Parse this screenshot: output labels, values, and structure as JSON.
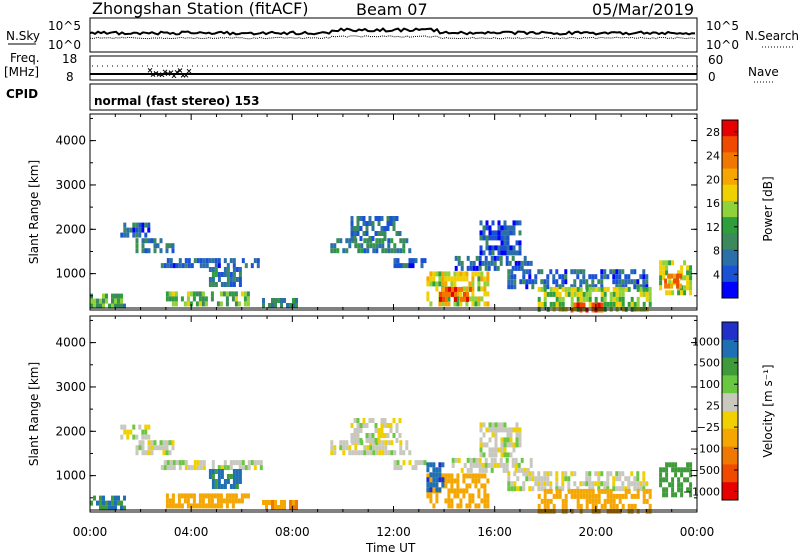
{
  "header": {
    "station": "Zhongshan Station (fitACF)",
    "beam": "Beam 07",
    "date": "05/Mar/2019"
  },
  "strip_panels": {
    "nsky_label": "N.Sky",
    "nsky_ticks": [
      "10^5",
      "10^0"
    ],
    "nsearch_label": "N.Search",
    "nsearch_ticks": [
      "10^5",
      "10^0"
    ],
    "freq_label": "Freq.",
    "freq_unit": "[MHz]",
    "freq_ticks": [
      "18",
      "8"
    ],
    "nave_label": "Nave",
    "nave_ticks": [
      "60",
      "0"
    ],
    "cpid_label": "CPID",
    "cpid_text": "normal (fast stereo) 153"
  },
  "colors": {
    "power_scale": [
      "#0000ff",
      "#1a52d6",
      "#2b6fa8",
      "#3b8a5c",
      "#2f9e3c",
      "#8fd23a",
      "#f0d000",
      "#f5a600",
      "#f07800",
      "#f04a00",
      "#e60000"
    ],
    "velocity_scale": [
      "#2030c8",
      "#1e6fb4",
      "#3f9a3a",
      "#6ac840",
      "#c8c8be",
      "#f0d000",
      "#f5a600",
      "#f07800",
      "#f04a00",
      "#e60000"
    ]
  },
  "chart_data": [
    {
      "type": "heatmap",
      "title": "",
      "ylabel": "Slant Range [km]",
      "xlabel": "",
      "x_ticks": [
        "00:00",
        "04:00",
        "08:00",
        "12:00",
        "16:00",
        "20:00",
        "00:00"
      ],
      "y_ticks": [
        "1000",
        "2000",
        "3000",
        "4000"
      ],
      "ylim": [
        180,
        4600
      ],
      "xlim_hours": [
        0,
        24
      ],
      "colorbar": {
        "label": "Power [dB]",
        "ticks": [
          "4",
          "8",
          "12",
          "16",
          "20",
          "24",
          "28"
        ],
        "range": [
          0,
          30
        ]
      },
      "regions": [
        {
          "t0": 0.0,
          "t1": 1.4,
          "r0": 300,
          "r1": 550,
          "v": 12
        },
        {
          "t0": 1.2,
          "t1": 2.3,
          "r0": 1900,
          "r1": 2150,
          "v": 6
        },
        {
          "t0": 1.8,
          "t1": 3.3,
          "r0": 1500,
          "r1": 1800,
          "v": 7
        },
        {
          "t0": 2.8,
          "t1": 6.8,
          "r0": 1200,
          "r1": 1350,
          "v": 5
        },
        {
          "t0": 3.0,
          "t1": 6.3,
          "r0": 300,
          "r1": 600,
          "v": 13
        },
        {
          "t0": 4.7,
          "t1": 6.0,
          "r0": 800,
          "r1": 1150,
          "v": 8
        },
        {
          "t0": 6.8,
          "t1": 8.2,
          "r0": 300,
          "r1": 450,
          "v": 10
        },
        {
          "t0": 9.5,
          "t1": 12.6,
          "r0": 1500,
          "r1": 1800,
          "v": 8
        },
        {
          "t0": 10.3,
          "t1": 12.3,
          "r0": 1800,
          "r1": 2300,
          "v": 7
        },
        {
          "t0": 12.0,
          "t1": 13.3,
          "r0": 1200,
          "r1": 1350,
          "v": 5
        },
        {
          "t0": 13.3,
          "t1": 15.7,
          "r0": 300,
          "r1": 1050,
          "v": 17
        },
        {
          "t0": 13.8,
          "t1": 15.0,
          "r0": 400,
          "r1": 700,
          "v": 25
        },
        {
          "t0": 14.3,
          "t1": 17.5,
          "r0": 1150,
          "r1": 1400,
          "v": 6
        },
        {
          "t0": 15.4,
          "t1": 17.0,
          "r0": 1500,
          "r1": 2200,
          "v": 5
        },
        {
          "t0": 16.5,
          "t1": 22.0,
          "r0": 700,
          "r1": 1100,
          "v": 6
        },
        {
          "t0": 17.7,
          "t1": 22.2,
          "r0": 180,
          "r1": 700,
          "v": 15
        },
        {
          "t0": 19.0,
          "t1": 20.2,
          "r0": 180,
          "r1": 350,
          "v": 27
        },
        {
          "t0": 22.5,
          "t1": 23.7,
          "r0": 600,
          "r1": 1300,
          "v": 15
        },
        {
          "t0": 22.7,
          "t1": 23.3,
          "r0": 700,
          "r1": 1000,
          "v": 24
        }
      ]
    },
    {
      "type": "heatmap",
      "title": "",
      "ylabel": "Slant Range [km]",
      "xlabel": "Time UT",
      "x_ticks": [
        "00:00",
        "04:00",
        "08:00",
        "12:00",
        "16:00",
        "20:00",
        "00:00"
      ],
      "y_ticks": [
        "1000",
        "2000",
        "3000",
        "4000"
      ],
      "ylim": [
        180,
        4600
      ],
      "xlim_hours": [
        0,
        24
      ],
      "colorbar": {
        "label": "Velocity [m s⁻¹]",
        "ticks": [
          "1000",
          "500",
          "100",
          "25",
          "−25",
          "−100",
          "−500",
          "−1000"
        ],
        "range": [
          -1200,
          1200
        ]
      },
      "regions": [
        {
          "t0": 0.0,
          "t1": 1.4,
          "r0": 300,
          "r1": 550,
          "v": 300
        },
        {
          "t0": 1.2,
          "t1": 2.3,
          "r0": 1900,
          "r1": 2150,
          "v": 0
        },
        {
          "t0": 1.8,
          "t1": 3.3,
          "r0": 1500,
          "r1": 1800,
          "v": 0
        },
        {
          "t0": 2.8,
          "t1": 6.8,
          "r0": 1200,
          "r1": 1350,
          "v": 0
        },
        {
          "t0": 3.0,
          "t1": 6.3,
          "r0": 300,
          "r1": 600,
          "v": -200
        },
        {
          "t0": 4.7,
          "t1": 6.0,
          "r0": 800,
          "r1": 1150,
          "v": 400
        },
        {
          "t0": 6.8,
          "t1": 8.2,
          "r0": 300,
          "r1": 450,
          "v": -300
        },
        {
          "t0": 9.5,
          "t1": 12.6,
          "r0": 1500,
          "r1": 1800,
          "v": 0
        },
        {
          "t0": 10.3,
          "t1": 12.3,
          "r0": 1800,
          "r1": 2300,
          "v": 0
        },
        {
          "t0": 12.0,
          "t1": 13.3,
          "r0": 1200,
          "r1": 1350,
          "v": 0
        },
        {
          "t0": 13.3,
          "t1": 15.7,
          "r0": 300,
          "r1": 1050,
          "v": -200
        },
        {
          "t0": 13.3,
          "t1": 14.0,
          "r0": 700,
          "r1": 1300,
          "v": 600
        },
        {
          "t0": 14.3,
          "t1": 17.5,
          "r0": 1150,
          "r1": 1400,
          "v": 0
        },
        {
          "t0": 15.4,
          "t1": 17.0,
          "r0": 1500,
          "r1": 2200,
          "v": 0
        },
        {
          "t0": 16.5,
          "t1": 22.0,
          "r0": 700,
          "r1": 1100,
          "v": 0
        },
        {
          "t0": 17.7,
          "t1": 22.2,
          "r0": 180,
          "r1": 700,
          "v": -200
        },
        {
          "t0": 22.5,
          "t1": 23.7,
          "r0": 600,
          "r1": 1300,
          "v": 200
        }
      ]
    }
  ]
}
